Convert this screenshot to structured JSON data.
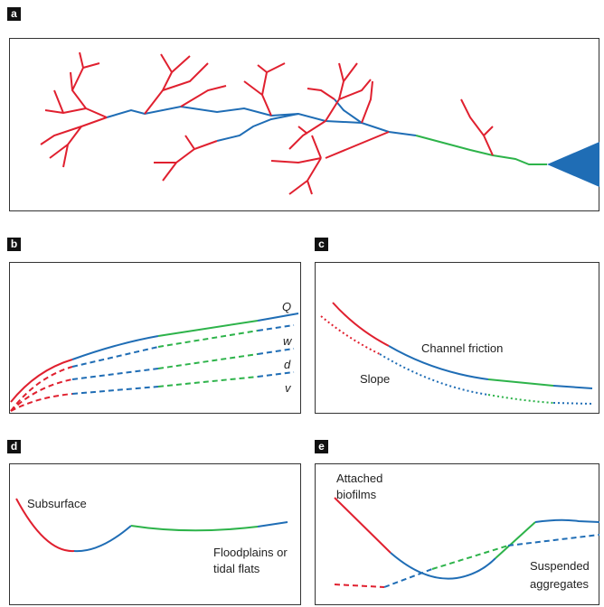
{
  "panels": [
    {
      "label": "a"
    },
    {
      "label": "b",
      "annotations": [
        "Q",
        "w",
        "d",
        "v"
      ]
    },
    {
      "label": "c",
      "annotations": [
        "Channel friction",
        "Slope"
      ]
    },
    {
      "label": "d",
      "annotations": [
        "Subsurface",
        "Floodplains or",
        "tidal flats"
      ]
    },
    {
      "label": "e",
      "annotations": [
        "Attached",
        "biofilms",
        "Suspended",
        "aggregates"
      ]
    }
  ]
}
